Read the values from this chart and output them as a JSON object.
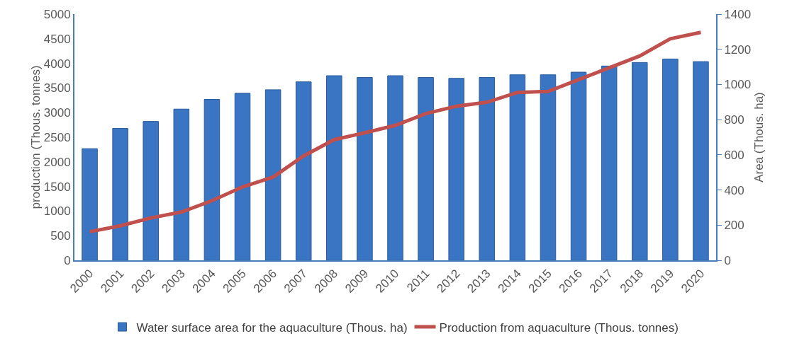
{
  "chart_data": {
    "type": "bar",
    "xlabel": null,
    "ylabel": "production (Thous. tonnes)",
    "y2label": "Area (Thous. ha)",
    "categories": [
      "2000",
      "2001",
      "2002",
      "2003",
      "2004",
      "2005",
      "2006",
      "2007",
      "2008",
      "2009",
      "2010",
      "2011",
      "2012",
      "2013",
      "2014",
      "2015",
      "2016",
      "2017",
      "2018",
      "2019",
      "2020"
    ],
    "series": [
      {
        "name": "Water surface area for the aquaculture (Thous. ha)",
        "axis": "y2",
        "color": "#3a75c4",
        "values": [
          635,
          750,
          790,
          860,
          915,
          950,
          970,
          1015,
          1050,
          1040,
          1050,
          1040,
          1035,
          1040,
          1055,
          1055,
          1070,
          1105,
          1125,
          1145,
          1130
        ]
      },
      {
        "name": "Production from aquaculture (Thous. tonnes)",
        "type": "line",
        "axis": "y",
        "color": "#c0504d",
        "values": [
          580,
          700,
          860,
          980,
          1210,
          1490,
          1690,
          2120,
          2450,
          2590,
          2740,
          2980,
          3130,
          3210,
          3410,
          3430,
          3670,
          3910,
          4150,
          4500,
          4630
        ]
      }
    ],
    "ylim": [
      0,
      5000
    ],
    "yticks": [
      0,
      500,
      1000,
      1500,
      2000,
      2500,
      3000,
      3500,
      4000,
      4500,
      5000
    ],
    "y2lim": [
      0,
      1400
    ],
    "y2ticks": [
      0,
      200,
      400,
      600,
      800,
      1000,
      1200,
      1400
    ],
    "grid": false,
    "legend": "bottom",
    "marker": "none",
    "line_style": "solid"
  }
}
